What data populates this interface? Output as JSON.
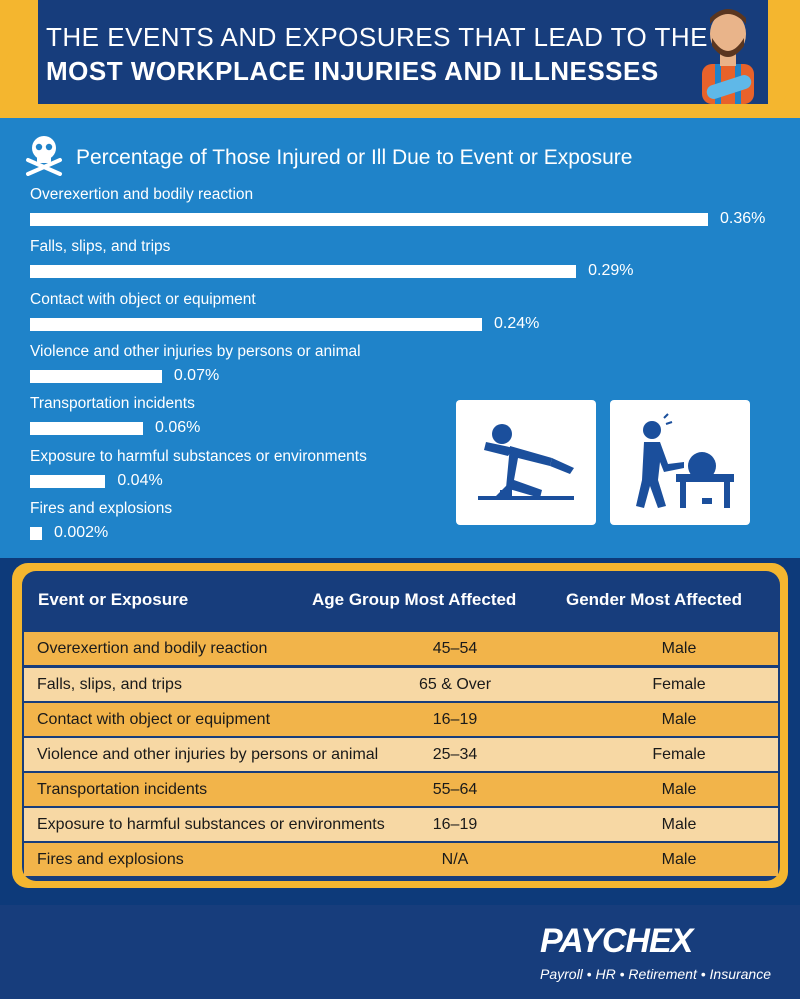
{
  "header": {
    "title_line1": "THE EVENTS AND EXPOSURES THAT LEAD TO THE",
    "title_line2": "MOST WORKPLACE INJURIES AND ILLNESSES"
  },
  "chart_data": {
    "type": "bar",
    "orientation": "horizontal",
    "title": "Percentage of Those Injured or Ill Due to Event or Exposure",
    "categories": [
      "Overexertion and bodily reaction",
      "Falls, slips, and trips",
      "Contact with object or equipment",
      "Violence and other injuries by persons or animal",
      "Transportation incidents",
      "Exposure to harmful substances or environments",
      "Fires and explosions"
    ],
    "values": [
      0.36,
      0.29,
      0.24,
      0.07,
      0.06,
      0.04,
      0.002
    ],
    "value_labels": [
      "0.36%",
      "0.29%",
      "0.24%",
      "0.07%",
      "0.06%",
      "0.04%",
      "0.002%"
    ],
    "xlabel": "",
    "ylabel": "",
    "grid": false,
    "bar_color": "#ffffff"
  },
  "icons": [
    "slip-fall-icon",
    "saw-injury-icon",
    "skull-crossbones-icon",
    "injured-worker-icon"
  ],
  "table": {
    "headers": [
      "Event or Exposure",
      "Age Group Most Affected",
      "Gender Most Affected"
    ],
    "rows": [
      [
        "Overexertion and bodily reaction",
        "45–54",
        "Male"
      ],
      [
        "Falls, slips, and trips",
        "65 & Over",
        "Female"
      ],
      [
        "Contact with object or equipment",
        "16–19",
        "Male"
      ],
      [
        "Violence and other injuries by persons or animal",
        "25–34",
        "Female"
      ],
      [
        "Transportation incidents",
        "55–64",
        "Male"
      ],
      [
        "Exposure to harmful substances or environments",
        "16–19",
        "Male"
      ],
      [
        "Fires and explosions",
        "N/A",
        "Male"
      ]
    ]
  },
  "footer": {
    "logo": "PAYCHEX",
    "tagline": "Payroll • HR • Retirement • Insurance"
  },
  "colors": {
    "navy": "#173d7c",
    "blue": "#1f83c9",
    "gold": "#f4b62f",
    "row_dark": "#f2b44a",
    "row_light": "#f7d8a4"
  }
}
